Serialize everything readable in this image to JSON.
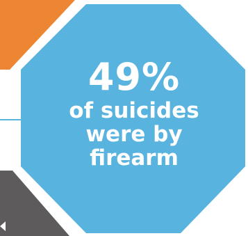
{
  "stat": {
    "value": "49%",
    "caption_lines": [
      "of suicides",
      "were by",
      "firearm"
    ]
  },
  "colors": {
    "background": "#ffffff",
    "octagon_fill": "#58b3df",
    "orange_shape": "#ec8632",
    "gray_shape": "#5d5b5b",
    "connector_line": "#58b3df",
    "text": "#ffffff"
  }
}
